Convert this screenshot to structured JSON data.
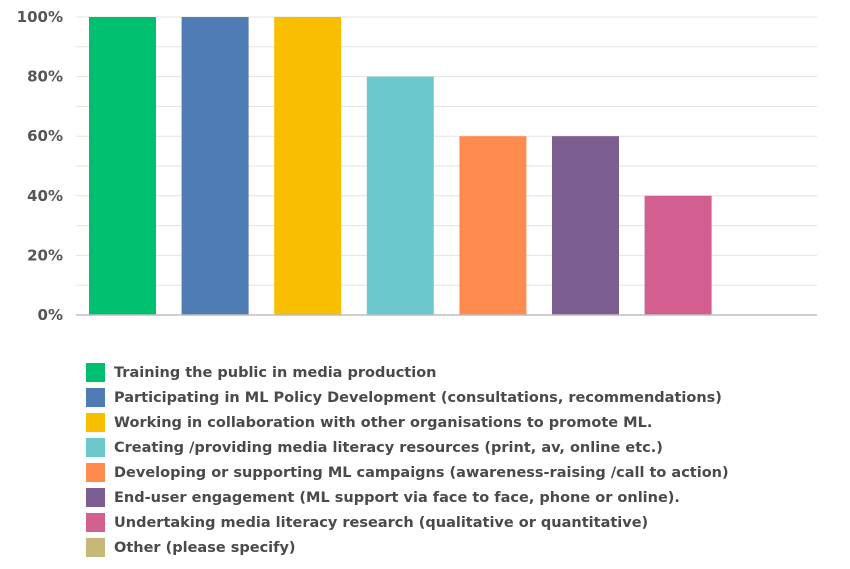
{
  "chart_data": {
    "type": "bar",
    "categories": [
      "Training the public in media production",
      "Participating in ML Policy Development (consultations, recommendations)",
      "Working in collaboration with other organisations to promote ML.",
      "Creating /providing media literacy resources (print, av, online etc.)",
      "Developing or supporting ML campaigns (awareness-raising /call to action)",
      "End-user engagement (ML support via face to face, phone or online).",
      "Undertaking media literacy research (qualitative or quantitative)",
      "Other (please specify)"
    ],
    "values": [
      100,
      100,
      100,
      80,
      60,
      60,
      40,
      0
    ],
    "colors": [
      "#00bf6f",
      "#507cb6",
      "#f9be00",
      "#6bc8cd",
      "#ff8b4f",
      "#7d5e90",
      "#d25f90",
      "#c7b879"
    ],
    "ylim": [
      0,
      100
    ],
    "yticks": [
      0,
      20,
      40,
      60,
      80,
      100
    ],
    "ytick_labels": [
      "0%",
      "20%",
      "40%",
      "60%",
      "80%",
      "100%"
    ],
    "grid": true,
    "legend_position": "bottom"
  }
}
